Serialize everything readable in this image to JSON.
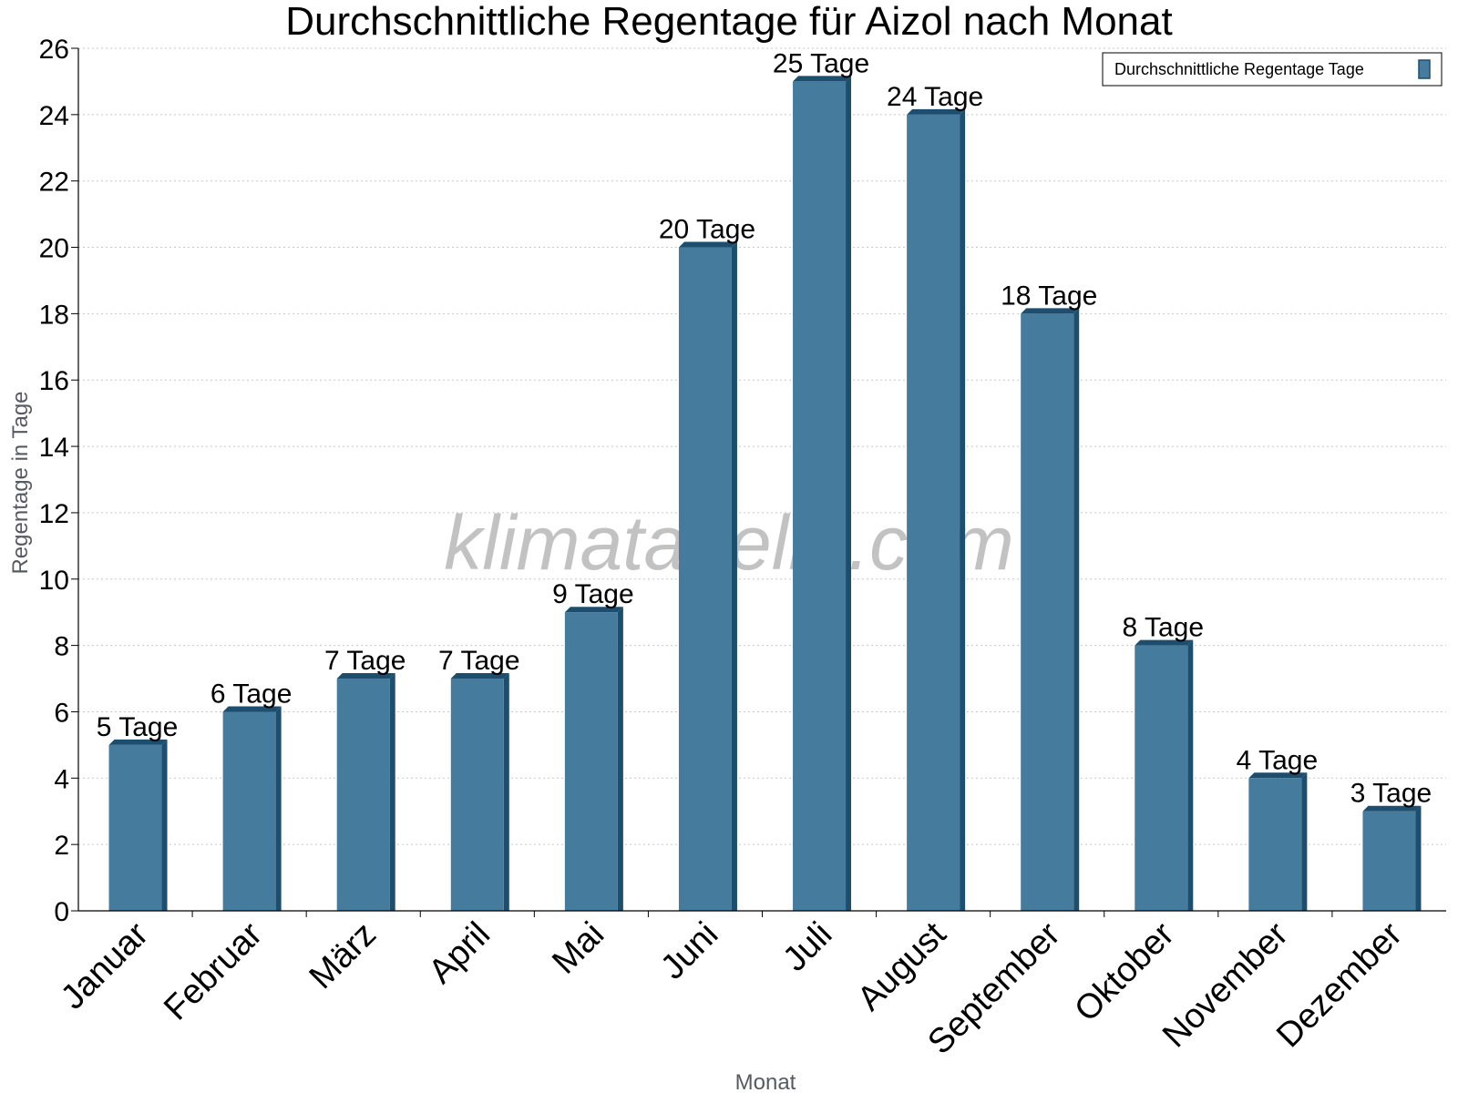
{
  "chart_data": {
    "type": "bar",
    "title": "Durchschnittliche Regentage für Aizol nach Monat",
    "xlabel": "Monat",
    "ylabel": "Regentage in Tage",
    "categories": [
      "Januar",
      "Februar",
      "März",
      "April",
      "Mai",
      "Juni",
      "Juli",
      "August",
      "September",
      "Oktober",
      "November",
      "Dezember"
    ],
    "series": [
      {
        "name": "Durchschnittliche Regentage Tage",
        "values": [
          5,
          6,
          7,
          7,
          9,
          20,
          25,
          24,
          18,
          8,
          4,
          3
        ],
        "color": "#457b9d",
        "data_labels": [
          "5 Tage",
          "6 Tage",
          "7 Tage",
          "7 Tage",
          "9 Tage",
          "20 Tage",
          "25 Tage",
          "24 Tage",
          "18 Tage",
          "8 Tage",
          "4 Tage",
          "3 Tage"
        ]
      }
    ],
    "ylim": [
      0,
      26
    ],
    "yticks": [
      0,
      2,
      4,
      6,
      8,
      10,
      12,
      14,
      16,
      18,
      20,
      22,
      24,
      26
    ],
    "grid": true,
    "legend": "top-right",
    "watermark": "klimatabelle.com",
    "colors": {
      "bar": "#457b9d",
      "bar_side": "#1d4e6e",
      "bar_top": "#1d4e6e",
      "grid": "#c8c8c8"
    }
  }
}
